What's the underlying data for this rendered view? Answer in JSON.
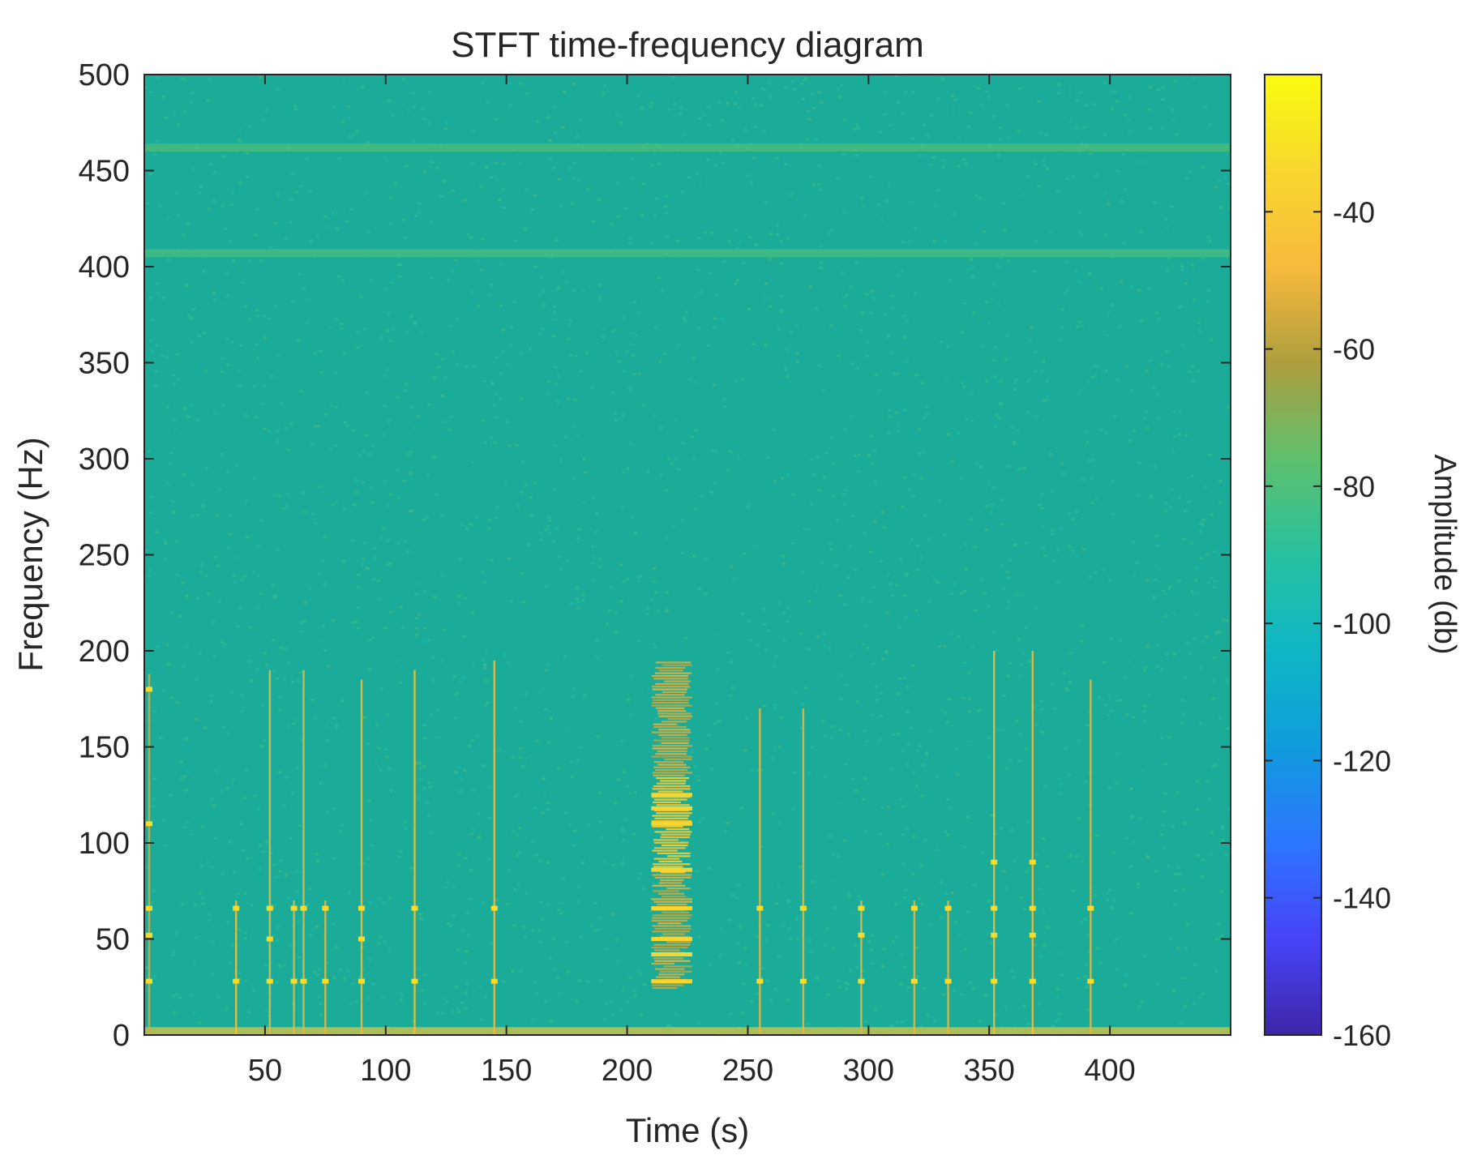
{
  "chart_data": {
    "type": "heatmap",
    "title": "STFT time-frequency diagram",
    "xlabel": "Time (s)",
    "ylabel": "Frequency (Hz)",
    "xlim": [
      0,
      450
    ],
    "ylim": [
      0,
      500
    ],
    "x_ticks": [
      50,
      100,
      150,
      200,
      250,
      300,
      350,
      400
    ],
    "y_ticks": [
      0,
      50,
      100,
      150,
      200,
      250,
      300,
      350,
      400,
      450,
      500
    ],
    "grid": false,
    "colorbar": {
      "label": "Amplitude (db)",
      "range": [
        -160,
        -20
      ],
      "ticks": [
        -160,
        -140,
        -120,
        -100,
        -80,
        -60,
        -40
      ],
      "colormap": "parula",
      "colors": [
        "#3e26a8",
        "#4743f8",
        "#2d76ff",
        "#109cdd",
        "#0fb6c5",
        "#27c19f",
        "#5fbf6e",
        "#ae9e3e",
        "#f8ba3d",
        "#f8d72e",
        "#f9fb0e"
      ]
    },
    "background_level_db": -88,
    "background_color": "#1aac98",
    "horizontal_bands": [
      {
        "freq": 462,
        "level_db": -78
      },
      {
        "freq": 407,
        "level_db": -80
      },
      {
        "freq": 2,
        "level_db": -42
      }
    ],
    "impulse_events": [
      {
        "time": 2,
        "fmax": 188,
        "level_db": -55,
        "peak_freqs": [
          28,
          52,
          66,
          110,
          180
        ]
      },
      {
        "time": 38,
        "fmax": 70,
        "level_db": -45,
        "peak_freqs": [
          28,
          66
        ]
      },
      {
        "time": 52,
        "fmax": 190,
        "level_db": -50,
        "peak_freqs": [
          28,
          50,
          66
        ]
      },
      {
        "time": 62,
        "fmax": 70,
        "level_db": -50,
        "peak_freqs": [
          28,
          66
        ]
      },
      {
        "time": 66,
        "fmax": 190,
        "level_db": -50,
        "peak_freqs": [
          28,
          66
        ]
      },
      {
        "time": 75,
        "fmax": 70,
        "level_db": -50,
        "peak_freqs": [
          28,
          66
        ]
      },
      {
        "time": 90,
        "fmax": 185,
        "level_db": -48,
        "peak_freqs": [
          28,
          50,
          66
        ]
      },
      {
        "time": 112,
        "fmax": 190,
        "level_db": -45,
        "peak_freqs": [
          28,
          66
        ]
      },
      {
        "time": 145,
        "fmax": 195,
        "level_db": -48,
        "peak_freqs": [
          28,
          66
        ]
      },
      {
        "time": 255,
        "fmax": 170,
        "level_db": -50,
        "peak_freqs": [
          28,
          66
        ]
      },
      {
        "time": 273,
        "fmax": 170,
        "level_db": -50,
        "peak_freqs": [
          28,
          66
        ]
      },
      {
        "time": 297,
        "fmax": 70,
        "level_db": -50,
        "peak_freqs": [
          28,
          52,
          66
        ]
      },
      {
        "time": 319,
        "fmax": 70,
        "level_db": -50,
        "peak_freqs": [
          28,
          66
        ]
      },
      {
        "time": 333,
        "fmax": 70,
        "level_db": -50,
        "peak_freqs": [
          28,
          66
        ]
      },
      {
        "time": 352,
        "fmax": 200,
        "level_db": -45,
        "peak_freqs": [
          28,
          52,
          66,
          90
        ]
      },
      {
        "time": 368,
        "fmax": 200,
        "level_db": -45,
        "peak_freqs": [
          28,
          52,
          66,
          90
        ]
      },
      {
        "time": 392,
        "fmax": 185,
        "level_db": -50,
        "peak_freqs": [
          28,
          66
        ]
      }
    ],
    "broadband_burst": {
      "time_range": [
        210,
        227
      ],
      "freq_range": [
        25,
        195
      ],
      "level_db": -55,
      "peak_level_db": -40,
      "peak_freq_range": [
        85,
        135
      ],
      "strong_lines": [
        28,
        42,
        50,
        66,
        86,
        110,
        118,
        125
      ]
    }
  }
}
